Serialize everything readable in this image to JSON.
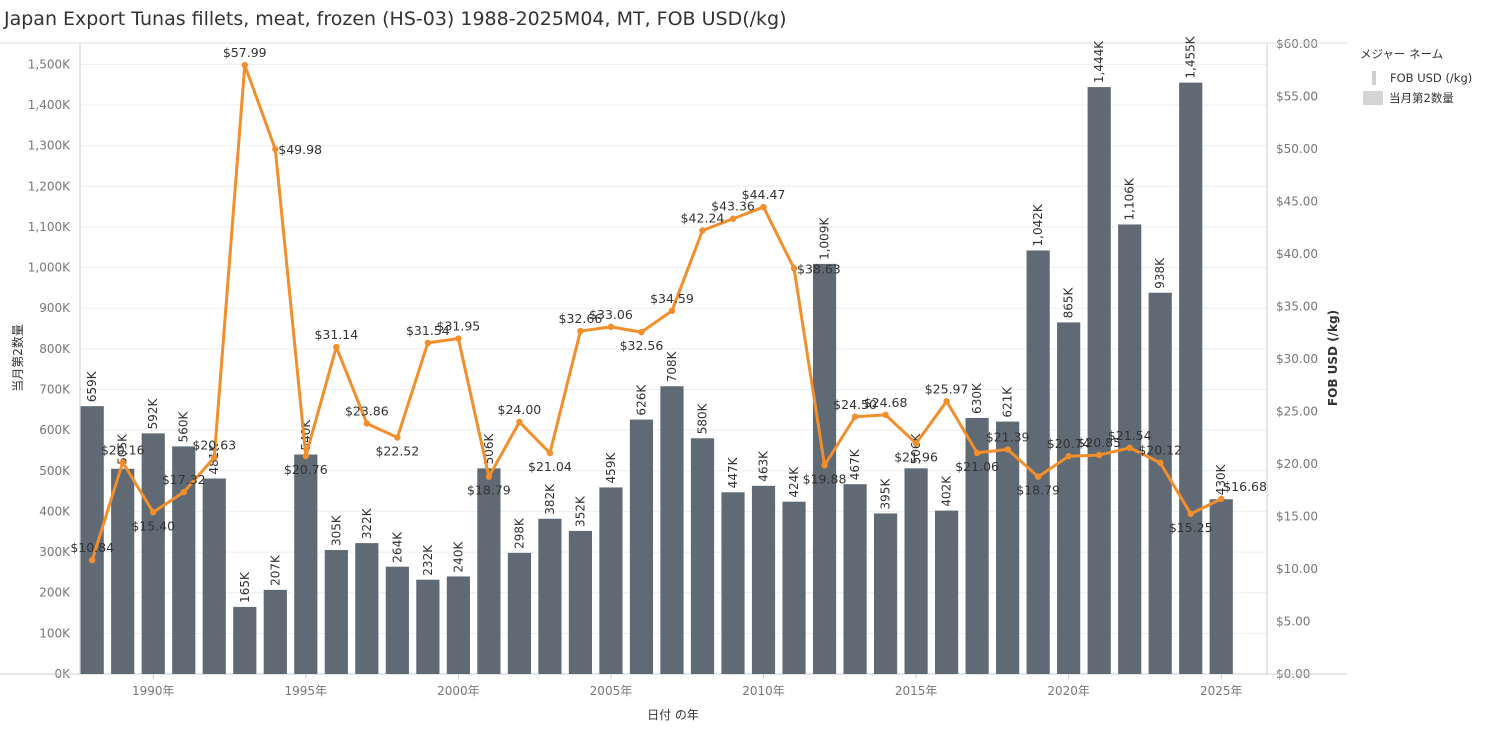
{
  "title": "Japan Export Tunas fillets, meat, frozen (HS-03) 1988-2025M04, MT, FOB USD(/kg)",
  "legend": {
    "title": "メジャー ネーム",
    "items": [
      {
        "label": "FOB USD (/kg)",
        "kind": "line"
      },
      {
        "label": "当月第2数量",
        "kind": "bar"
      }
    ]
  },
  "colors": {
    "bar": "#5f6a75",
    "line": "#f28e2b",
    "grid": "#eeeeee",
    "axis": "#cccccc"
  },
  "chart_data": {
    "type": "bar",
    "title": "Japan Export Tunas fillets, meat, frozen (HS-03) 1988-2025M04, MT, FOB USD(/kg)",
    "xlabel": "日付 の年",
    "ylabel": "当月第2数量",
    "y2label": "FOB USD (/kg)",
    "ylim": [
      0,
      1550000
    ],
    "y2lim": [
      0,
      60
    ],
    "xlim": [
      1987.6,
      2026.5
    ],
    "y_ticks": [
      "0K",
      "100K",
      "200K",
      "300K",
      "400K",
      "500K",
      "600K",
      "700K",
      "800K",
      "900K",
      "1,000K",
      "1,100K",
      "1,200K",
      "1,300K",
      "1,400K",
      "1,500K"
    ],
    "y2_ticks": [
      "$0.00",
      "$5.00",
      "$10.00",
      "$15.00",
      "$20.00",
      "$25.00",
      "$30.00",
      "$35.00",
      "$40.00",
      "$45.00",
      "$50.00",
      "$55.00",
      "$60.00"
    ],
    "x_ticks": [
      "1990年",
      "1995年",
      "2000年",
      "2005年",
      "2010年",
      "2015年",
      "2020年",
      "2025年"
    ],
    "x_tick_years": [
      1990,
      1995,
      2000,
      2005,
      2010,
      2015,
      2020,
      2025
    ],
    "years": [
      1988,
      1989,
      1990,
      1991,
      1992,
      1993,
      1994,
      1995,
      1996,
      1997,
      1998,
      1999,
      2000,
      2001,
      2002,
      2003,
      2004,
      2005,
      2006,
      2007,
      2008,
      2009,
      2010,
      2011,
      2012,
      2013,
      2014,
      2015,
      2016,
      2017,
      2018,
      2019,
      2020,
      2021,
      2022,
      2023,
      2024,
      2025
    ],
    "series": [
      {
        "name": "当月第2数量",
        "type": "bar",
        "values": [
          659000,
          505000,
          592000,
          560000,
          481000,
          165000,
          207000,
          540000,
          305000,
          322000,
          264000,
          232000,
          240000,
          506000,
          298000,
          382000,
          352000,
          459000,
          626000,
          708000,
          580000,
          447000,
          463000,
          424000,
          1009000,
          467000,
          395000,
          506000,
          402000,
          630000,
          621000,
          1042000,
          865000,
          1444000,
          1106000,
          938000,
          1455000,
          430000
        ],
        "labels": [
          "659K",
          "505K",
          "592K",
          "560K",
          "481K",
          "165K",
          "207K",
          "540K",
          "305K",
          "322K",
          "264K",
          "232K",
          "240K",
          "506K",
          "298K",
          "382K",
          "352K",
          "459K",
          "626K",
          "708K",
          "580K",
          "447K",
          "463K",
          "424K",
          "1,009K",
          "467K",
          "395K",
          "506K",
          "402K",
          "630K",
          "621K",
          "1,042K",
          "865K",
          "1,444K",
          "1,106K",
          "938K",
          "1,455K",
          "430K"
        ]
      },
      {
        "name": "FOB USD (/kg)",
        "type": "line",
        "values": [
          10.84,
          20.16,
          15.4,
          17.32,
          20.63,
          57.99,
          49.98,
          20.76,
          31.14,
          23.86,
          22.52,
          31.54,
          31.95,
          18.79,
          24.0,
          21.04,
          32.66,
          33.06,
          32.56,
          34.59,
          42.24,
          43.36,
          44.47,
          38.63,
          19.88,
          24.5,
          24.68,
          21.96,
          25.97,
          21.06,
          21.39,
          18.79,
          20.74,
          20.85,
          21.54,
          20.12,
          15.25,
          16.68
        ],
        "labels": [
          "$10.84",
          "$20.16",
          "$15.40",
          "$17.32",
          "$20.63",
          "$57.99",
          "$49.98",
          "$20.76",
          "$31.14",
          "$23.86",
          "$22.52",
          "$31.54",
          "$31.95",
          "$18.79",
          "$24.00",
          "$21.04",
          "$32.66",
          "$33.06",
          "$32.56",
          "$34.59",
          "$42.24",
          "$43.36",
          "$44.47",
          "$38.63",
          "$19.88",
          "$24.50",
          "$24.68",
          "$21.96",
          "$25.97",
          "$21.06",
          "$21.39",
          "$18.79",
          "$20.74",
          "$20.85",
          "$21.54",
          "$20.12",
          "$15.25",
          "$16.68"
        ]
      }
    ],
    "grid": true,
    "legend_position": "right"
  }
}
